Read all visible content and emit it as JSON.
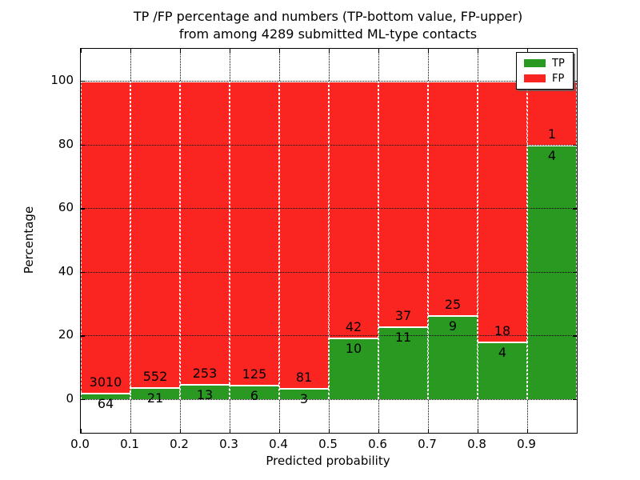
{
  "title": {
    "line1": "TP /FP percentage and numbers (TP-bottom value, FP-upper)",
    "line2": "from among 4289 submitted ML-type contacts"
  },
  "legend": {
    "position": "upper right",
    "entries": [
      {
        "label": "TP",
        "color": "#2a9922"
      },
      {
        "label": "FP",
        "color": "#fa2521"
      }
    ]
  },
  "chart_data": {
    "type": "bar",
    "stacked": true,
    "normalized_to_percent": true,
    "title": "TP /FP percentage and numbers (TP-bottom value, FP-upper) from among 4289 submitted ML-type contacts",
    "xlabel": "Predicted probability",
    "ylabel": "Percentage",
    "total_contacts": 4289,
    "bin_edges": [
      0.0,
      0.1,
      0.2,
      0.3,
      0.4,
      0.5,
      0.6,
      0.7,
      0.8,
      0.9,
      1.0
    ],
    "categories": [
      "0.0-0.1",
      "0.1-0.2",
      "0.2-0.3",
      "0.3-0.4",
      "0.4-0.5",
      "0.5-0.6",
      "0.6-0.7",
      "0.7-0.8",
      "0.8-0.9",
      "0.9-1.0"
    ],
    "series": [
      {
        "name": "TP",
        "color": "#2a9922",
        "counts": [
          64,
          21,
          13,
          6,
          3,
          10,
          11,
          9,
          4,
          4
        ]
      },
      {
        "name": "FP",
        "color": "#fa2521",
        "counts": [
          3010,
          552,
          253,
          125,
          81,
          42,
          37,
          25,
          18,
          1
        ]
      }
    ],
    "bar_value_labels": "TP count below stack boundary, FP count above stack boundary",
    "x_ticks": [
      "0.0",
      "0.1",
      "0.2",
      "0.3",
      "0.4",
      "0.5",
      "0.6",
      "0.7",
      "0.8",
      "0.9"
    ],
    "y_ticks": [
      0,
      20,
      40,
      60,
      80,
      100
    ],
    "xlim": [
      0.0,
      1.0
    ],
    "ylim": [
      -10.5,
      110.0
    ],
    "grid": "dotted black",
    "legend_position": "upper right"
  }
}
